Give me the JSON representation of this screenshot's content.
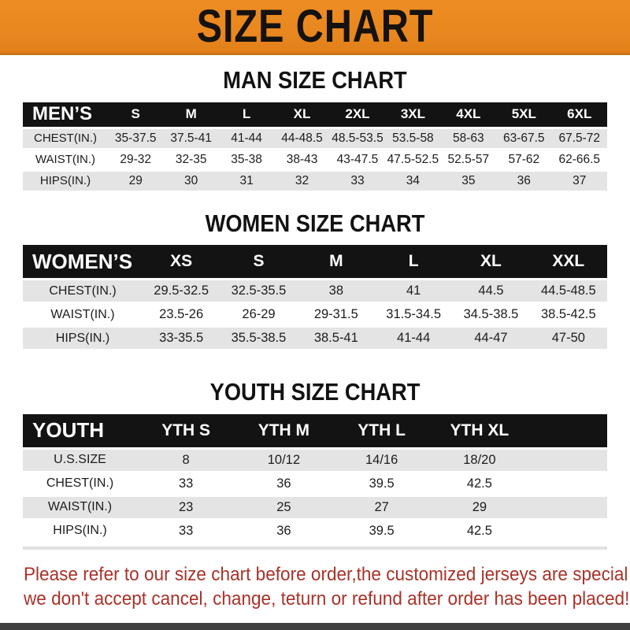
{
  "banner": {
    "title": "SIZE CHART",
    "bg_color": "#e8861f",
    "text_color": "#151210"
  },
  "colors": {
    "header_bar_black": "#131313",
    "row_stripe_gray": "#e4e4e4",
    "footer_red": "#a8332a",
    "bottom_strip_gray": "#3f3f3f"
  },
  "chart_data": [
    {
      "type": "table",
      "title": "MAN SIZE CHART",
      "corner_label": "MEN’S",
      "columns": [
        "S",
        "M",
        "L",
        "XL",
        "2XL",
        "3XL",
        "4XL",
        "5XL",
        "6XL"
      ],
      "rows": [
        {
          "label": "CHEST(IN.)",
          "values": [
            "35-37.5",
            "37.5-41",
            "41-44",
            "44-48.5",
            "48.5-53.5",
            "53.5-58",
            "58-63",
            "63-67.5",
            "67.5-72"
          ]
        },
        {
          "label": "WAIST(IN.)",
          "values": [
            "29-32",
            "32-35",
            "35-38",
            "38-43",
            "43-47.5",
            "47.5-52.5",
            "52.5-57",
            "57-62",
            "62-66.5"
          ]
        },
        {
          "label": "HIPS(IN.)",
          "values": [
            "29",
            "30",
            "31",
            "32",
            "33",
            "34",
            "35",
            "36",
            "37"
          ]
        }
      ]
    },
    {
      "type": "table",
      "title": "WOMEN SIZE CHART",
      "corner_label": "WOMEN’S",
      "columns": [
        "XS",
        "S",
        "M",
        "L",
        "XL",
        "XXL"
      ],
      "rows": [
        {
          "label": "CHEST(IN.)",
          "values": [
            "29.5-32.5",
            "32.5-35.5",
            "38",
            "41",
            "44.5",
            "44.5-48.5"
          ]
        },
        {
          "label": "WAIST(IN.)",
          "values": [
            "23.5-26",
            "26-29",
            "29-31.5",
            "31.5-34.5",
            "34.5-38.5",
            "38.5-42.5"
          ]
        },
        {
          "label": "HIPS(IN.)",
          "values": [
            "33-35.5",
            "35.5-38.5",
            "38.5-41",
            "41-44",
            "44-47",
            "47-50"
          ]
        }
      ]
    },
    {
      "type": "table",
      "title": "YOUTH SIZE CHART",
      "corner_label": "YOUTH",
      "columns": [
        "YTH S",
        "YTH M",
        "YTH L",
        "YTH XL"
      ],
      "rows": [
        {
          "label": "U.S.SIZE",
          "values": [
            "8",
            "10/12",
            "14/16",
            "18/20"
          ]
        },
        {
          "label": "CHEST(IN.)",
          "values": [
            "33",
            "36",
            "39.5",
            "42.5"
          ]
        },
        {
          "label": "WAIST(IN.)",
          "values": [
            "23",
            "25",
            "27",
            "29"
          ]
        },
        {
          "label": "HIPS(IN.)",
          "values": [
            "33",
            "36",
            "39.5",
            "42.5"
          ]
        }
      ]
    }
  ],
  "footer": {
    "line1": "Please refer to our size chart before order,the customized jerseys are special products,",
    "line2": "we don't accept cancel, change, teturn or refund after order has been placed!"
  }
}
